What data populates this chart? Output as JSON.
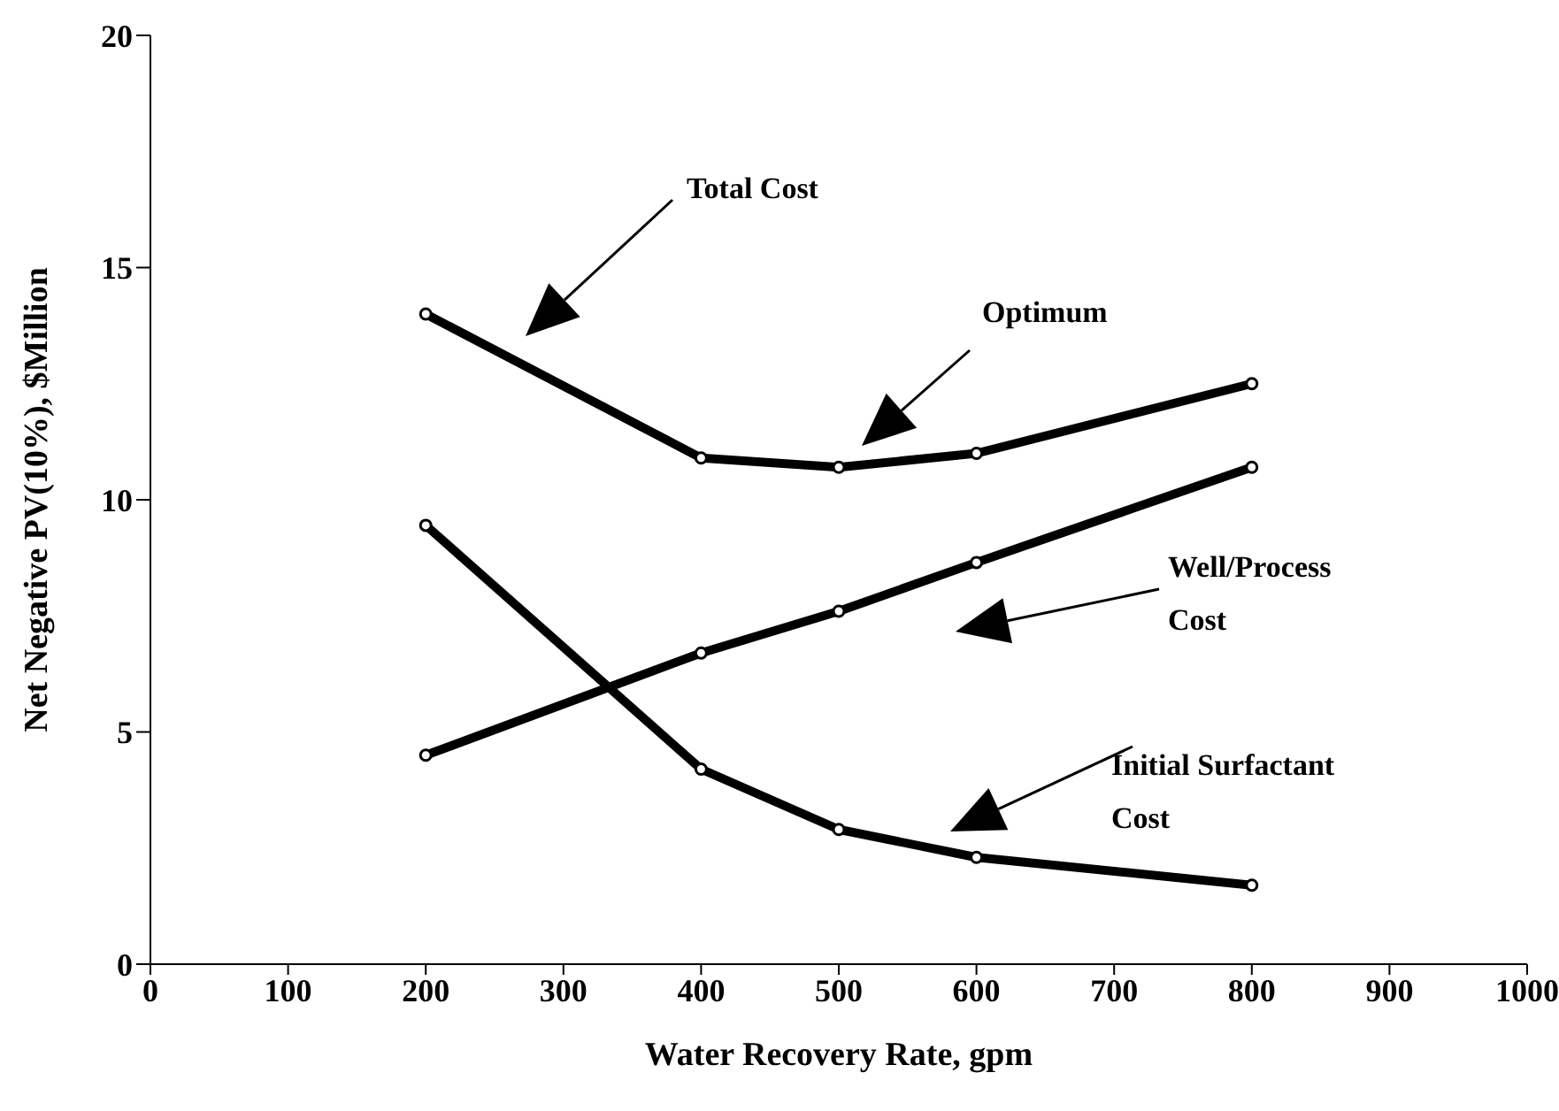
{
  "chart_data": {
    "type": "line",
    "xlabel": "Water Recovery Rate, gpm",
    "ylabel": "Net Negative PV(10%), $Million",
    "x": [
      200,
      400,
      500,
      600,
      800
    ],
    "series": [
      {
        "color": "#000000",
        "values": [
          14.0,
          10.9,
          10.7,
          11.0,
          12.5
        ]
      },
      {
        "color": "#000000",
        "values": [
          4.5,
          6.7,
          7.6,
          8.65,
          10.7
        ]
      },
      {
        "color": "#000000",
        "values": [
          9.45,
          4.2,
          2.9,
          2.3,
          1.7
        ]
      }
    ],
    "xlim": [
      0,
      1000
    ],
    "xticks": [
      0,
      100,
      200,
      300,
      400,
      500,
      600,
      700,
      800,
      900,
      1000
    ],
    "ylim": [
      0,
      20
    ],
    "yticks": [
      0,
      5,
      10,
      15,
      20
    ],
    "grid": false,
    "legend": false,
    "marker": "circle",
    "line_style": "solid",
    "annotations": [
      "Total Cost",
      "Optimum",
      "Well/Process Cost",
      "Initial Surfactant Cost"
    ]
  }
}
